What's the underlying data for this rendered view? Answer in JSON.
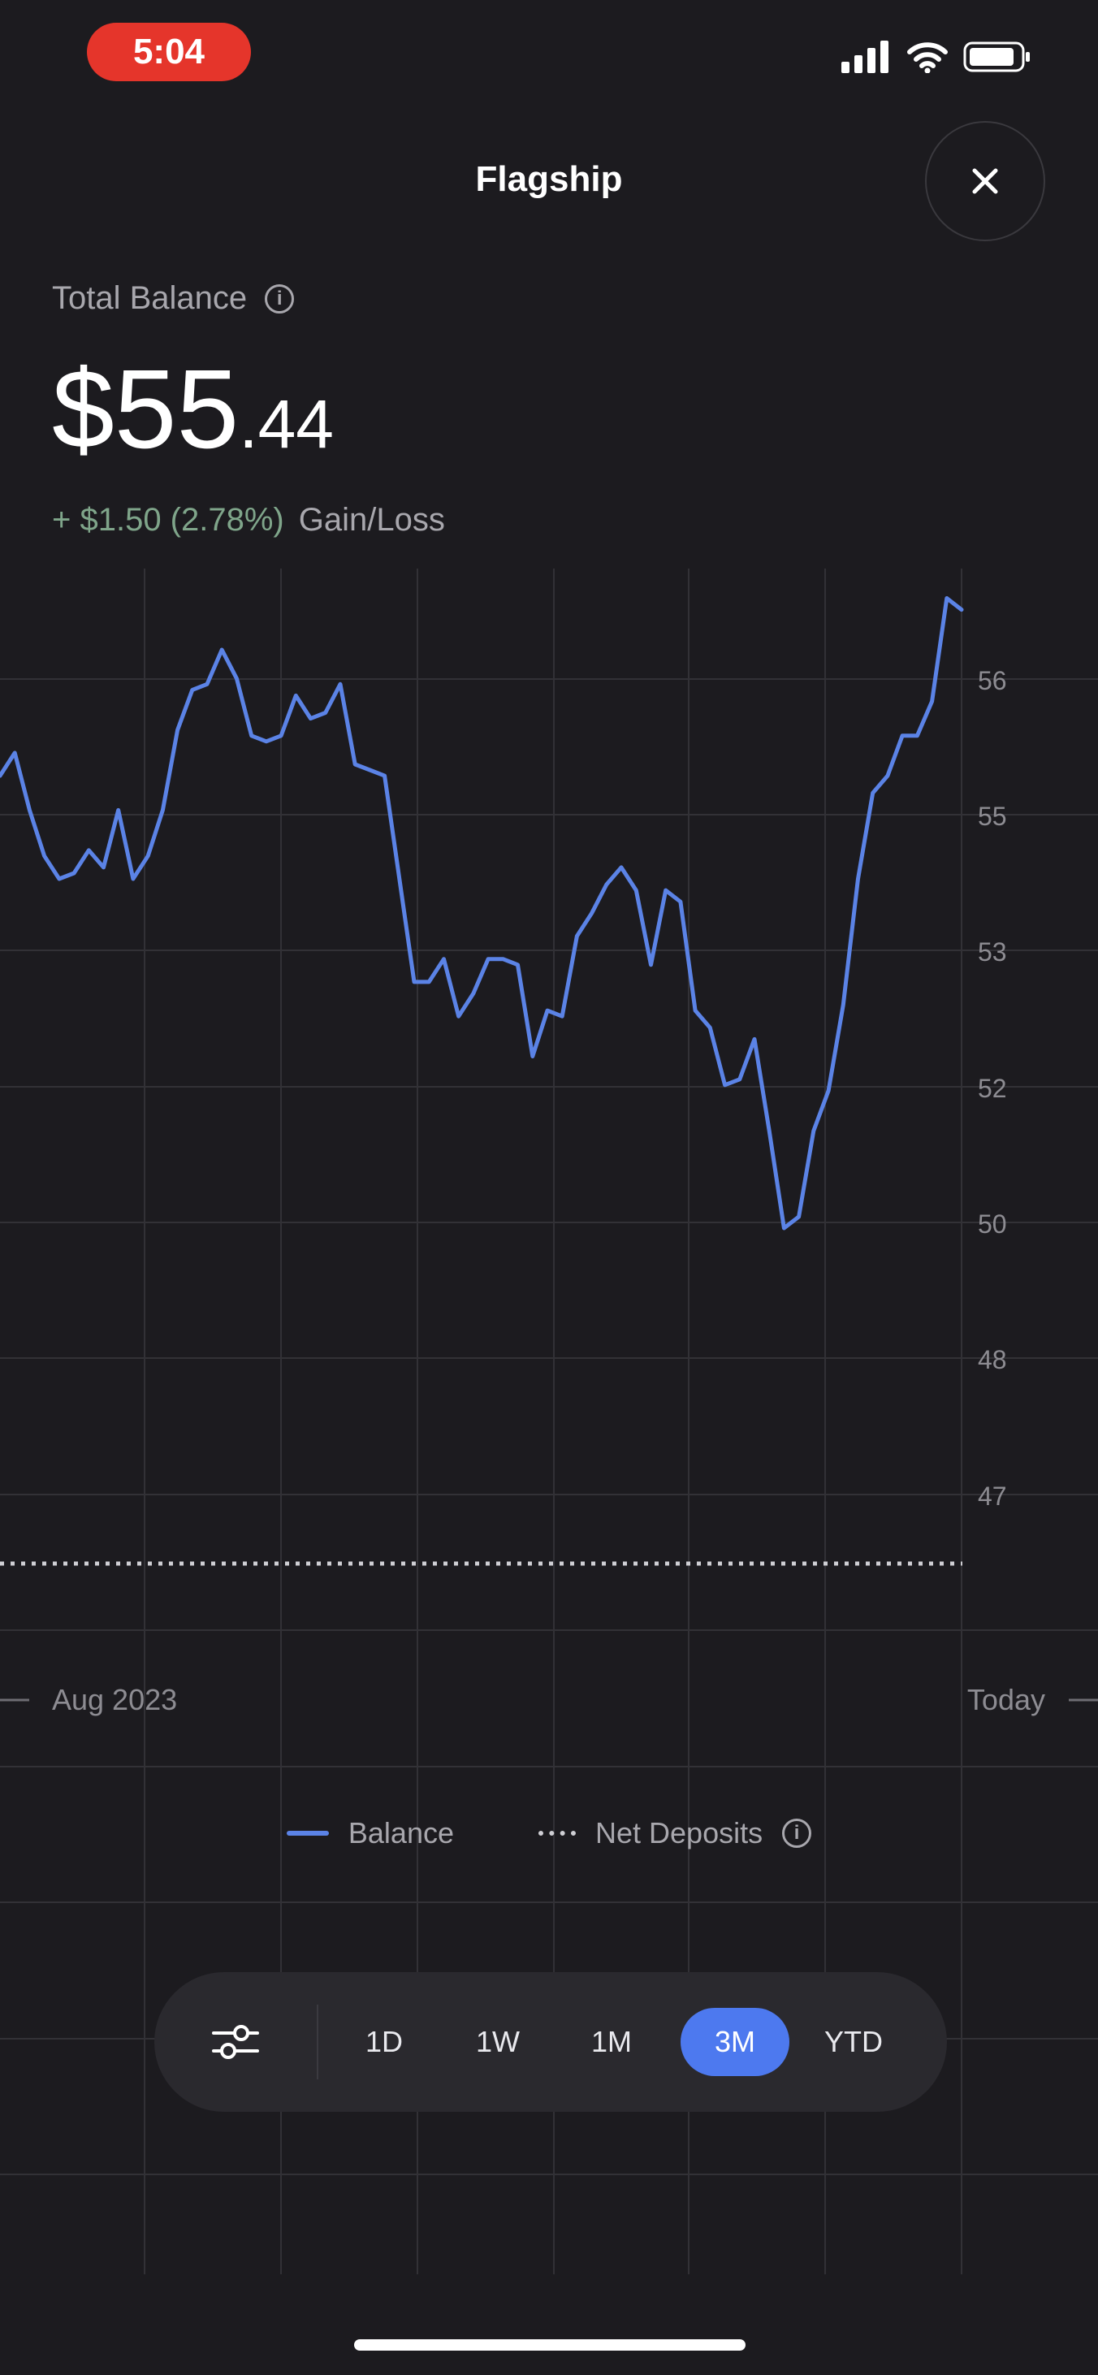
{
  "status_bar": {
    "time": "5:04"
  },
  "header": {
    "title": "Flagship",
    "close_icon": "close-icon"
  },
  "balance": {
    "label": "Total Balance",
    "value_main": "$55",
    "value_cents": ".44",
    "gain_amount": "+ $1.50 (2.78%)",
    "gain_label": "Gain/Loss"
  },
  "chart_data": {
    "type": "line",
    "y_ticks": [
      "56",
      "55",
      "53",
      "52",
      "50",
      "48",
      "47"
    ],
    "x_labels": [
      "Aug 2023",
      "Today"
    ],
    "net_deposits_level": 46.5,
    "series": [
      {
        "name": "Balance",
        "color": "#5b83e6",
        "values": [
          53.9,
          54.1,
          53.6,
          53.2,
          53.0,
          53.05,
          53.25,
          53.1,
          53.6,
          53.0,
          53.2,
          53.6,
          54.3,
          54.65,
          54.7,
          55.0,
          54.75,
          54.25,
          54.2,
          54.25,
          54.6,
          54.4,
          54.45,
          54.7,
          54.0,
          53.95,
          53.9,
          53.0,
          52.1,
          52.1,
          52.3,
          51.8,
          52.0,
          52.3,
          52.3,
          52.25,
          51.45,
          51.85,
          51.8,
          52.5,
          52.7,
          52.95,
          53.1,
          52.9,
          52.25,
          52.9,
          52.8,
          51.85,
          51.7,
          51.2,
          51.25,
          51.6,
          50.8,
          49.95,
          50.05,
          50.8,
          51.15,
          51.9,
          53.0,
          53.75,
          53.9,
          54.25,
          54.25,
          54.55,
          55.45,
          55.35
        ]
      },
      {
        "name": "Net Deposits",
        "color": "#cfcfd4"
      }
    ]
  },
  "ranges": {
    "options": [
      "1D",
      "1W",
      "1M",
      "3M",
      "YTD"
    ],
    "selected": "3M",
    "filter_icon": "sliders-icon"
  },
  "colors": {
    "background": "#1c1b1f",
    "accent": "#4d79ef",
    "line": "#5b83e6",
    "gain": "#7fa58a"
  }
}
